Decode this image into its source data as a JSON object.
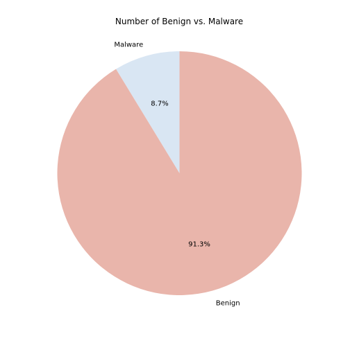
{
  "chart_data": {
    "type": "pie",
    "title": "Number of Benign vs. Malware",
    "slices": [
      {
        "label": "Malware",
        "value": 8.7,
        "display": "8.7%",
        "color": "#d9e6f3"
      },
      {
        "label": "Benign",
        "value": 91.3,
        "display": "91.3%",
        "color": "#e9b5ab"
      }
    ],
    "start_angle_deg": 90,
    "direction": "counterclockwise"
  }
}
